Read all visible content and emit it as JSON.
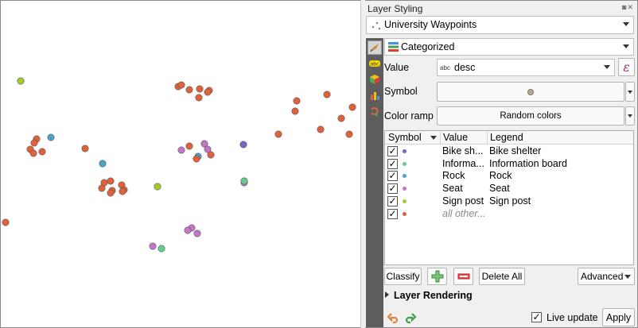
{
  "panel": {
    "title": "Layer Styling",
    "float_glyphs": "◙✕"
  },
  "layer": {
    "name": "University Waypoints"
  },
  "renderer": {
    "type": "Categorized"
  },
  "value_field": {
    "label": "Value",
    "type_badge": "abc",
    "value": "desc",
    "expression_symbol": "ε"
  },
  "symbol_row": {
    "label": "Symbol",
    "swatch_color": "#c0a98b"
  },
  "color_ramp": {
    "label": "Color ramp",
    "value": "Random colors"
  },
  "table": {
    "headers": {
      "symbol": "Symbol",
      "value": "Value",
      "legend": "Legend"
    },
    "rows": [
      {
        "checked": "✓",
        "color": "#7b63c9",
        "value": "Bike sh...",
        "legend": "Bike shelter",
        "italic": false
      },
      {
        "checked": "✓",
        "color": "#66cc8c",
        "value": "Informa...",
        "legend": "Information board",
        "italic": false
      },
      {
        "checked": "✓",
        "color": "#4aa3c9",
        "value": "Rock",
        "legend": "Rock",
        "italic": false
      },
      {
        "checked": "✓",
        "color": "#c475c8",
        "value": "Seat",
        "legend": "Seat",
        "italic": false
      },
      {
        "checked": "✓",
        "color": "#a3cc2b",
        "value": "Sign post",
        "legend": "Sign post",
        "italic": false
      },
      {
        "checked": "✓",
        "color": "#e0623a",
        "value": "all other...",
        "legend": "",
        "italic": true
      }
    ]
  },
  "buttons": {
    "classify": "Classify",
    "delete_all": "Delete All",
    "advanced": "Advanced"
  },
  "section": {
    "layer_rendering": "Layer Rendering"
  },
  "footer": {
    "live_update_label": "Live update",
    "live_update_checked": "✓",
    "apply": "Apply"
  },
  "map": {
    "colors": {
      "other": "#e0623a",
      "bike_shelter": "#7b63c9",
      "information_board": "#66cc8c",
      "rock": "#4aa3c9",
      "seat": "#c475c8",
      "sign_post": "#a3cc2b"
    }
  }
}
